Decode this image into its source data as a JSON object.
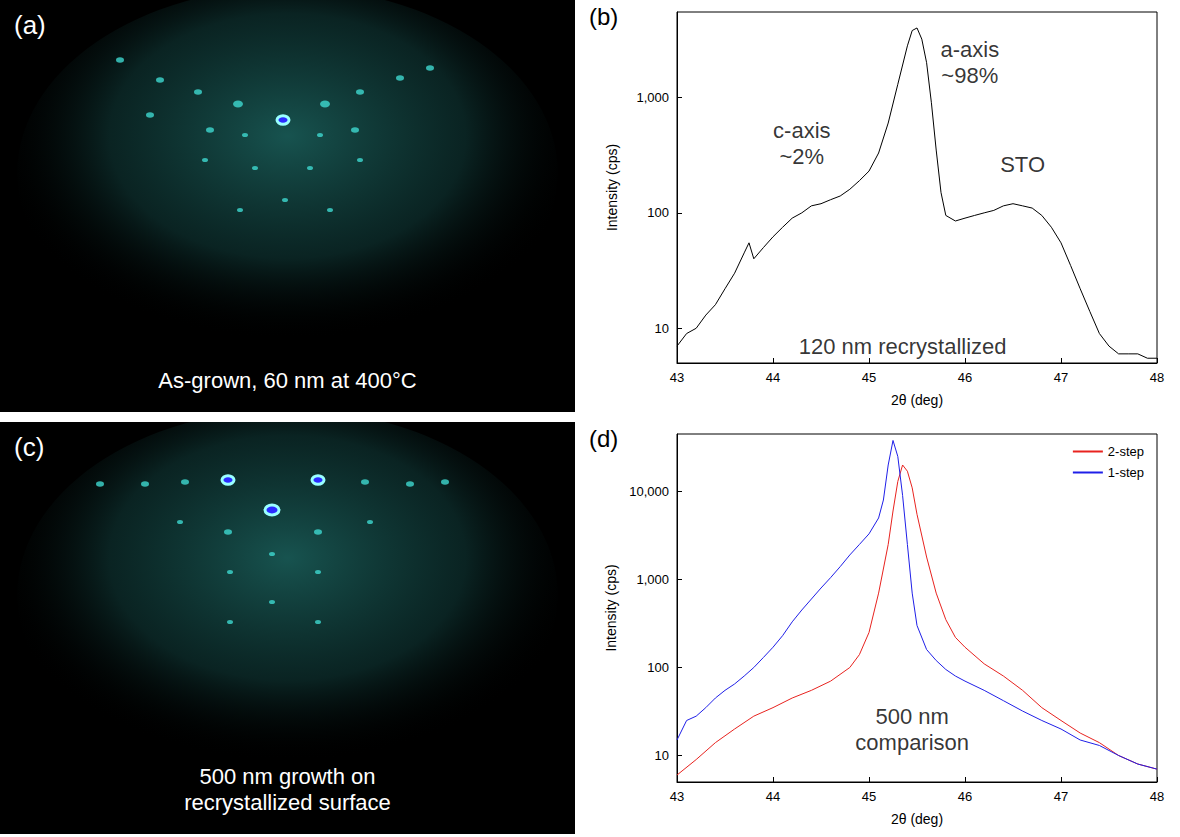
{
  "images": [
    {
      "label": "(a)",
      "caption": "As-grown, 60 nm at 400°C"
    },
    {
      "label": "(c)",
      "caption": "500 nm growth on recrystallized surface"
    }
  ],
  "chart_data": [
    {
      "label": "(b)",
      "type": "line",
      "xlabel": "2θ (deg)",
      "ylabel": "Intensity (cps)",
      "log": "y",
      "xlim": [
        43,
        48
      ],
      "xticks": [
        43,
        44,
        45,
        46,
        47,
        48
      ],
      "ylim": [
        5,
        5500
      ],
      "yticks": [
        10,
        100,
        1000
      ],
      "color": "#000000",
      "x": [
        43.0,
        43.1,
        43.2,
        43.3,
        43.4,
        43.5,
        43.6,
        43.7,
        43.75,
        43.8,
        43.9,
        44.0,
        44.1,
        44.2,
        44.3,
        44.4,
        44.5,
        44.6,
        44.7,
        44.8,
        44.9,
        45.0,
        45.1,
        45.2,
        45.3,
        45.4,
        45.45,
        45.5,
        45.55,
        45.6,
        45.65,
        45.7,
        45.75,
        45.8,
        45.9,
        46.0,
        46.1,
        46.2,
        46.3,
        46.4,
        46.5,
        46.6,
        46.7,
        46.8,
        46.9,
        47.0,
        47.1,
        47.2,
        47.3,
        47.4,
        47.5,
        47.6,
        47.7,
        47.8,
        47.9,
        48.0
      ],
      "values": [
        7,
        9,
        10,
        13,
        16,
        22,
        30,
        45,
        55,
        40,
        50,
        62,
        75,
        90,
        100,
        115,
        120,
        130,
        140,
        160,
        190,
        230,
        330,
        600,
        1300,
        2800,
        3800,
        4000,
        3200,
        2000,
        900,
        350,
        150,
        95,
        85,
        90,
        95,
        100,
        105,
        115,
        120,
        115,
        110,
        95,
        75,
        55,
        35,
        22,
        14,
        9,
        7,
        6,
        6,
        6,
        5.5,
        5.5
      ],
      "annotations": [
        {
          "text": [
            "c-axis",
            "~2%"
          ],
          "x": 44.3,
          "y": 400
        },
        {
          "text": [
            "a-axis",
            "~98%"
          ],
          "x": 46.05,
          "y": 2000
        },
        {
          "text": [
            "STO"
          ],
          "x": 46.6,
          "y": 260
        },
        {
          "text": [
            "120 nm recrystallized"
          ],
          "x": 45.35,
          "y": 7
        }
      ]
    },
    {
      "label": "(d)",
      "type": "line",
      "xlabel": "2θ (deg)",
      "ylabel": "Intensity (cps)",
      "log": "y",
      "xlim": [
        43,
        48
      ],
      "xticks": [
        43,
        44,
        45,
        46,
        47,
        48
      ],
      "ylim": [
        5,
        45000
      ],
      "yticks": [
        10,
        100,
        1000,
        10000
      ],
      "legend": "upper right",
      "series": [
        {
          "name": "2-step",
          "color": "#e8231f",
          "x": [
            43.0,
            43.2,
            43.4,
            43.6,
            43.8,
            44.0,
            44.2,
            44.4,
            44.6,
            44.8,
            44.9,
            45.0,
            45.1,
            45.2,
            45.25,
            45.3,
            45.35,
            45.4,
            45.45,
            45.5,
            45.6,
            45.7,
            45.8,
            45.9,
            46.0,
            46.2,
            46.4,
            46.6,
            46.8,
            47.0,
            47.2,
            47.4,
            47.6,
            47.8,
            48.0
          ],
          "values": [
            6,
            9,
            14,
            20,
            28,
            35,
            45,
            55,
            70,
            100,
            140,
            250,
            700,
            2500,
            6000,
            13000,
            20000,
            17000,
            11000,
            5500,
            1800,
            700,
            350,
            220,
            170,
            110,
            80,
            55,
            35,
            25,
            18,
            14,
            10,
            8,
            7
          ]
        },
        {
          "name": "1-step",
          "color": "#1f1fe8",
          "x": [
            43.0,
            43.1,
            43.2,
            43.3,
            43.4,
            43.5,
            43.6,
            43.7,
            43.8,
            43.9,
            44.0,
            44.1,
            44.2,
            44.3,
            44.4,
            44.5,
            44.6,
            44.7,
            44.8,
            44.9,
            45.0,
            45.1,
            45.15,
            45.2,
            45.25,
            45.3,
            45.35,
            45.4,
            45.45,
            45.5,
            45.6,
            45.7,
            45.8,
            45.9,
            46.0,
            46.2,
            46.4,
            46.6,
            46.8,
            47.0,
            47.2,
            47.4,
            47.6,
            47.8,
            48.0
          ],
          "values": [
            15,
            25,
            28,
            35,
            45,
            55,
            65,
            80,
            100,
            130,
            170,
            230,
            330,
            450,
            600,
            800,
            1050,
            1400,
            1900,
            2500,
            3300,
            5000,
            8000,
            20000,
            38000,
            25000,
            9000,
            2500,
            700,
            300,
            160,
            120,
            95,
            80,
            70,
            55,
            42,
            32,
            25,
            20,
            15,
            13,
            10,
            8,
            7
          ]
        }
      ],
      "annotations": [
        {
          "text": [
            "500 nm",
            "comparison"
          ],
          "x": 45.45,
          "y": 20
        }
      ]
    }
  ]
}
